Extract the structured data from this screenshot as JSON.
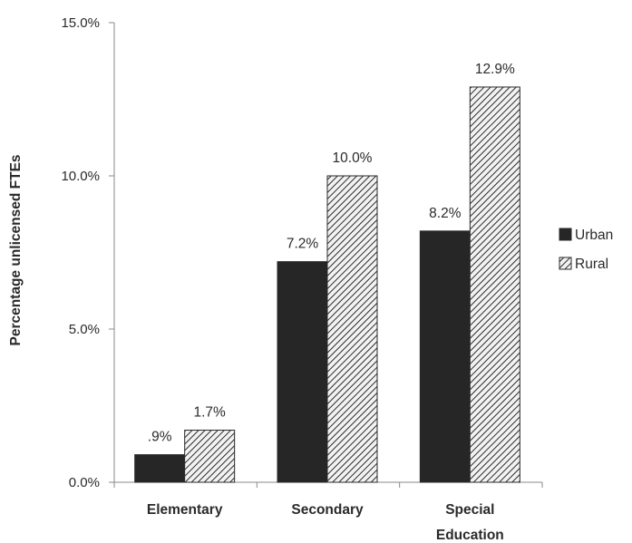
{
  "chart_data": {
    "type": "bar",
    "ylabel": "Percentage unlicensed FTEs",
    "xlabel": "",
    "categories": [
      [
        "Elementary"
      ],
      [
        "Secondary"
      ],
      [
        "Special",
        "Education"
      ]
    ],
    "series": [
      {
        "name": "Urban",
        "values": [
          0.9,
          7.2,
          8.2
        ],
        "labels": [
          ".9%",
          "7.2%",
          "8.2%"
        ],
        "color": "#262626",
        "fill": "solid"
      },
      {
        "name": "Rural",
        "values": [
          1.7,
          10.0,
          12.9
        ],
        "labels": [
          "1.7%",
          "10.0%",
          "12.9%"
        ],
        "color": "#333333",
        "fill": "hatch"
      }
    ],
    "ylim": [
      0,
      15
    ],
    "yticks": [
      0,
      5,
      10,
      15
    ],
    "ytick_labels": [
      "0.0%",
      "5.0%",
      "10.0%",
      "15.0%"
    ],
    "grid": false,
    "legend": "right"
  }
}
